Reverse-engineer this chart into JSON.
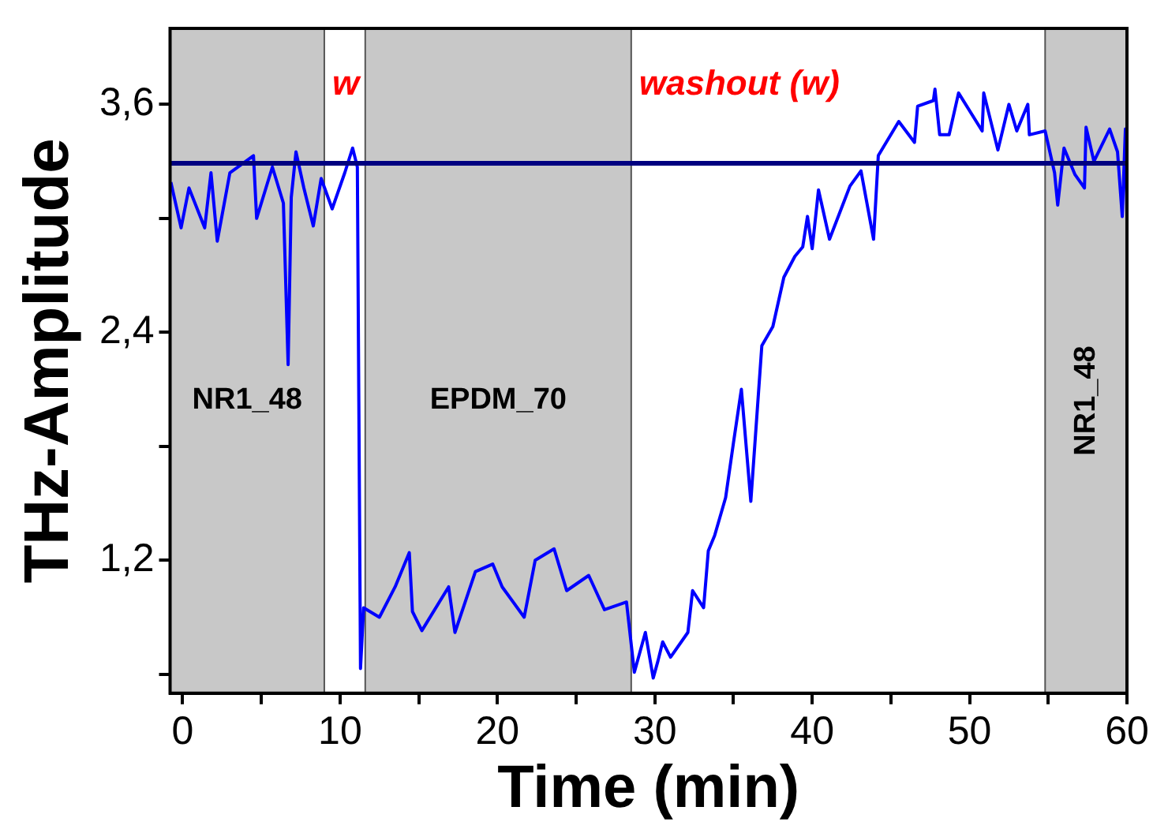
{
  "chart_data": {
    "type": "line",
    "xlabel": "Time (min)",
    "ylabel": "THz-Amplitude",
    "xlim": [
      -0.8,
      60
    ],
    "ylim": [
      0.5,
      4.0
    ],
    "xticks": [
      0,
      {
        "value": 5,
        "label": null
      },
      10,
      {
        "value": 15,
        "label": null
      },
      20,
      {
        "value": 25,
        "label": null
      },
      30,
      {
        "value": 35,
        "label": null
      },
      40,
      {
        "value": 45,
        "label": null
      },
      50,
      {
        "value": 55,
        "label": null
      },
      60
    ],
    "yticks": [
      {
        "value": 0.6,
        "label": null
      },
      {
        "value": 1.2,
        "label": "1,2"
      },
      {
        "value": 1.8,
        "label": null
      },
      {
        "value": 2.4,
        "label": "2,4"
      },
      {
        "value": 3.0,
        "label": null
      },
      {
        "value": 3.6,
        "label": "3,6"
      }
    ],
    "grid": false,
    "legend": false,
    "marker": "none",
    "line_style": "solid",
    "series": [
      {
        "color": "#0000ff",
        "x": [
          -0.75,
          -0.1,
          0.4,
          1.4,
          1.8,
          2.2,
          3.0,
          4.5,
          4.7,
          5.7,
          6.4,
          6.7,
          6.9,
          7.2,
          7.7,
          8.3,
          8.8,
          9.5,
          10.3,
          10.8,
          11.1,
          11.3,
          11.5,
          12.5,
          13.5,
          14.4,
          14.6,
          15.2,
          16.9,
          17.3,
          18.6,
          19.7,
          20.3,
          21.7,
          22.4,
          23.6,
          24.4,
          25.8,
          26.8,
          28.2,
          28.7,
          29.4,
          29.9,
          30.2,
          30.5,
          31.0,
          32.1,
          32.4,
          33.1,
          33.4,
          33.8,
          34.5,
          35.0,
          35.5,
          36.1,
          36.8,
          37.5,
          38.2,
          38.9,
          39.4,
          39.7,
          40.0,
          40.4,
          41.1,
          42.4,
          43.1,
          43.9,
          44.2,
          45.5,
          46.5,
          46.7,
          47.7,
          47.8,
          48.1,
          48.7,
          49.3,
          50.8,
          50.9,
          51.8,
          52.5,
          53.0,
          53.7,
          53.8,
          54.8,
          55.4,
          55.6,
          56.0,
          56.7,
          57.3,
          57.4,
          57.9,
          58.9,
          59.4,
          59.7,
          59.9,
          60.0
        ],
        "values": [
          3.19,
          2.95,
          3.16,
          2.95,
          3.24,
          2.88,
          3.24,
          3.33,
          3.0,
          3.27,
          3.08,
          2.23,
          3.11,
          3.35,
          3.16,
          2.96,
          3.21,
          3.05,
          3.24,
          3.37,
          3.27,
          0.63,
          0.95,
          0.9,
          1.06,
          1.24,
          0.93,
          0.83,
          1.06,
          0.82,
          1.14,
          1.18,
          1.06,
          0.9,
          1.2,
          1.26,
          1.04,
          1.12,
          0.94,
          0.98,
          0.61,
          0.82,
          0.58,
          0.67,
          0.77,
          0.69,
          0.82,
          1.04,
          0.95,
          1.25,
          1.33,
          1.53,
          1.82,
          2.1,
          1.51,
          2.33,
          2.43,
          2.69,
          2.8,
          2.85,
          3.01,
          2.84,
          3.15,
          2.89,
          3.17,
          3.25,
          2.89,
          3.33,
          3.51,
          3.4,
          3.59,
          3.62,
          3.68,
          3.44,
          3.44,
          3.66,
          3.46,
          3.66,
          3.36,
          3.6,
          3.46,
          3.6,
          3.44,
          3.46,
          3.24,
          3.07,
          3.37,
          3.23,
          3.16,
          3.48,
          3.3,
          3.47,
          3.35,
          3.01,
          3.47,
          3.01
        ]
      }
    ],
    "ref_lines": [
      {
        "axis": "y",
        "value": 3.29,
        "label": null,
        "color": "#000080"
      }
    ],
    "bands": [
      {
        "axis": "x",
        "from": -0.8,
        "to": 9.0,
        "label": "NR1_48",
        "color": "#c8c8c8"
      },
      {
        "axis": "x",
        "from": 11.6,
        "to": 28.5,
        "label": "EPDM_70",
        "color": "#c8c8c8"
      },
      {
        "axis": "x",
        "from": 54.8,
        "to": 60,
        "label": "NR1_48",
        "color": "#c8c8c8"
      }
    ],
    "annotations": [
      "w",
      "washout (w)"
    ]
  }
}
